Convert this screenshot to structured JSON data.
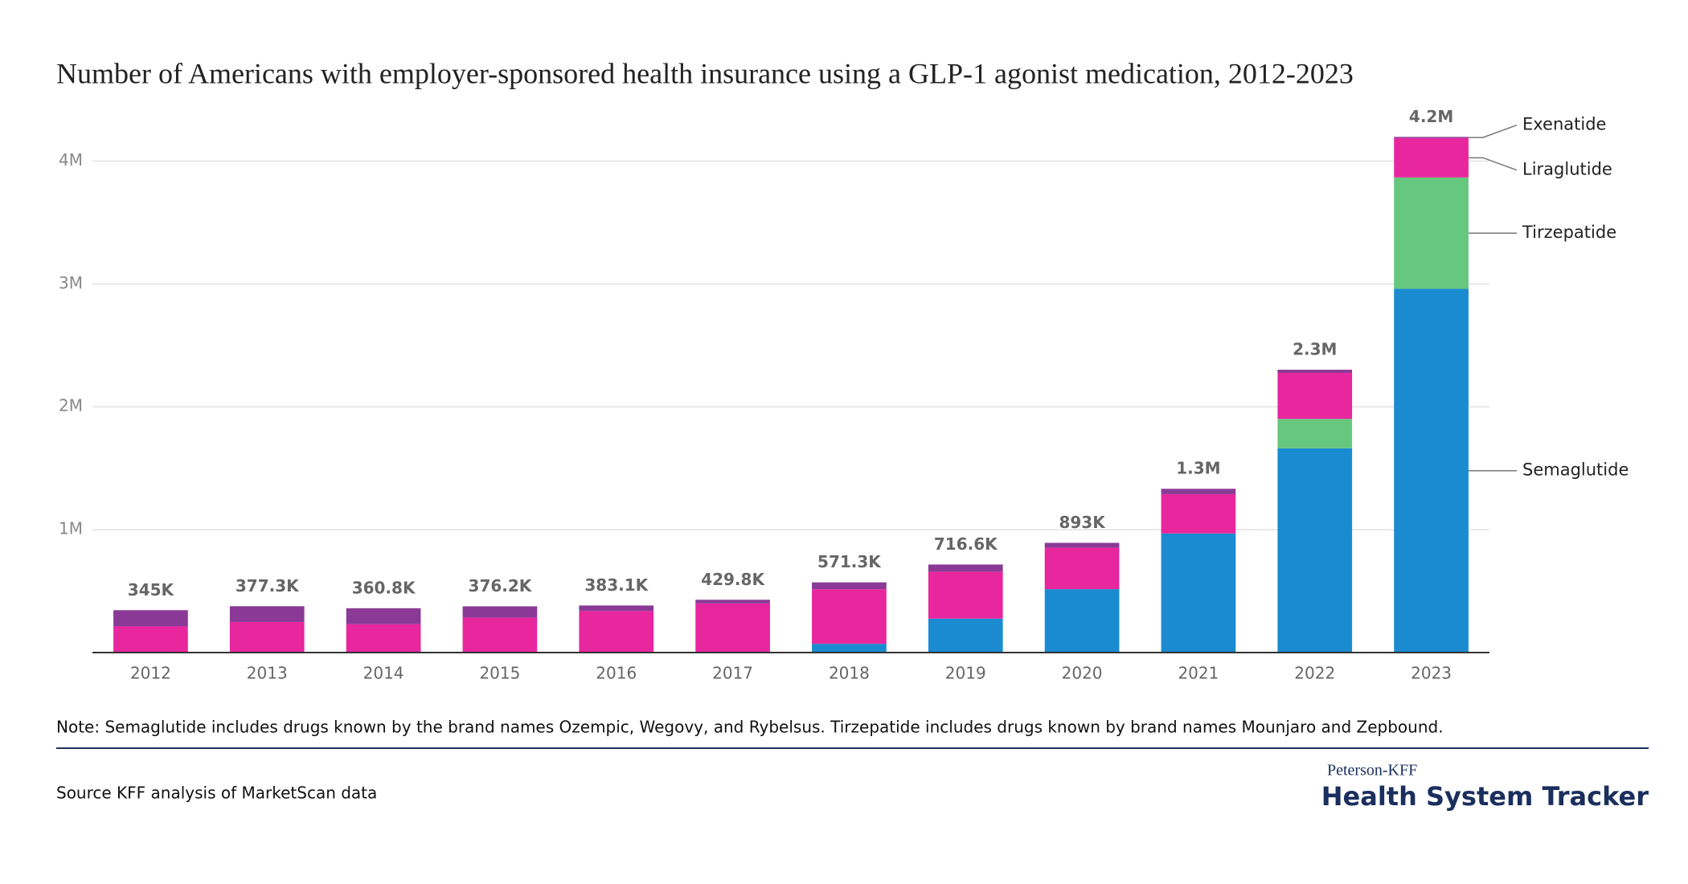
{
  "chart_data": {
    "type": "stacked_bar",
    "title": "Number of Americans with employer-sponsored health insurance using a GLP-1 agonist medication, 2012-2023",
    "categories": [
      "2012",
      "2013",
      "2014",
      "2015",
      "2016",
      "2017",
      "2018",
      "2019",
      "2020",
      "2021",
      "2022",
      "2023"
    ],
    "series": [
      {
        "name": "Semaglutide",
        "color": "#1a8bd0",
        "values": [
          0,
          0,
          0,
          0,
          0,
          0,
          71000,
          276000,
          516000,
          969000,
          1662000,
          2960000
        ]
      },
      {
        "name": "Tirzepatide",
        "color": "#66c77e",
        "values": [
          0,
          0,
          0,
          0,
          0,
          0,
          0,
          0,
          0,
          0,
          240000,
          907000
        ]
      },
      {
        "name": "Liraglutide",
        "color": "#e8269e",
        "values": [
          213000,
          249000,
          231000,
          284000,
          338000,
          400000,
          445000,
          382000,
          337000,
          320000,
          374000,
          320000
        ]
      },
      {
        "name": "Exenatide",
        "color": "#8a3a96",
        "values": [
          132000,
          128300,
          129800,
          92200,
          45100,
          29800,
          55300,
          58600,
          40000,
          44000,
          26000,
          10000
        ]
      }
    ],
    "totals": {
      "values": [
        345000,
        377300,
        360800,
        376200,
        383100,
        429800,
        571300,
        716600,
        893000,
        1333000,
        2302000,
        4197000
      ],
      "value_labels": [
        "345K",
        "377.3K",
        "360.8K",
        "376.2K",
        "383.1K",
        "429.8K",
        "571.3K",
        "716.6K",
        "893K",
        "1.3M",
        "2.3M",
        "4.2M"
      ]
    },
    "ylim": [
      0,
      4500000
    ],
    "yticks": [
      {
        "value": 1000000,
        "label": "1M"
      },
      {
        "value": 2000000,
        "label": "2M"
      },
      {
        "value": 3000000,
        "label": "3M"
      },
      {
        "value": 4000000,
        "label": "4M"
      }
    ],
    "grid": true,
    "note": "Note: Semaglutide includes drugs known by the brand names Ozempic, Wegovy, and Rybelsus. Tirzepatide includes drugs known by brand names Mounjaro and Zepbound.",
    "source": "Source KFF analysis of MarketScan data",
    "brand_org": "Peterson-KFF",
    "brand_name": "Health System Tracker"
  }
}
